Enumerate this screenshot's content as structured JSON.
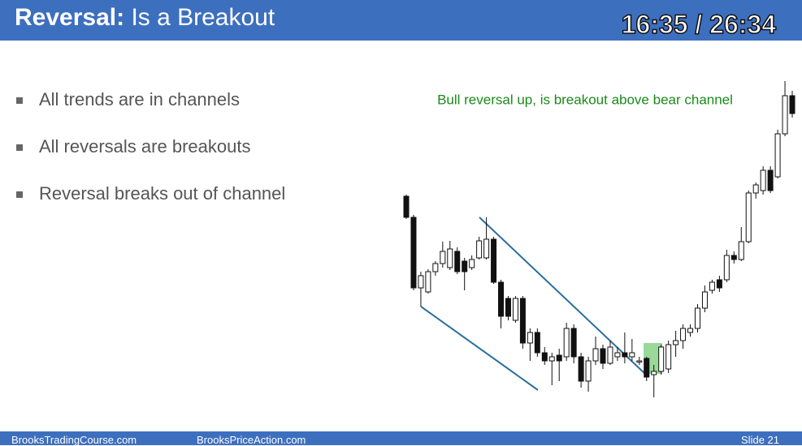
{
  "header": {
    "title_bold": "Reversal:",
    "title_rest": "Is a Breakout",
    "timer": "16:35 / 26:34"
  },
  "bullets": [
    "All trends are in channels",
    "All reversals are breakouts",
    "Reversal breaks out of channel"
  ],
  "chart_data": {
    "type": "candlestick",
    "annotation": "Bull reversal up, is breakout above bear channel",
    "ylim": [
      0,
      410
    ],
    "open": [
      258,
      232,
      145,
      140,
      165,
      175,
      170,
      190,
      178,
      170,
      182,
      182,
      205,
      152,
      132,
      105,
      132,
      77,
      90,
      65,
      55,
      62,
      60,
      95,
      60,
      30,
      55,
      70,
      52,
      60,
      65,
      60,
      55,
      58,
      38,
      42,
      45,
      75,
      80,
      90,
      95,
      120,
      142,
      155,
      155,
      185,
      180,
      202,
      262,
      265,
      290,
      282,
      335,
      382
    ],
    "close": [
      232,
      145,
      160,
      165,
      175,
      190,
      193,
      165,
      165,
      180,
      203,
      205,
      152,
      110,
      110,
      132,
      77,
      90,
      65,
      55,
      60,
      55,
      95,
      60,
      30,
      55,
      70,
      52,
      72,
      65,
      60,
      65,
      55,
      35,
      42,
      72,
      75,
      80,
      95,
      95,
      120,
      140,
      152,
      145,
      185,
      180,
      202,
      262,
      272,
      290,
      265,
      335,
      382,
      360
    ],
    "high": [
      260,
      235,
      165,
      168,
      178,
      202,
      203,
      195,
      182,
      185,
      208,
      232,
      208,
      155,
      135,
      135,
      135,
      95,
      95,
      72,
      65,
      70,
      102,
      100,
      65,
      60,
      85,
      75,
      80,
      72,
      90,
      82,
      60,
      60,
      50,
      75,
      80,
      92,
      100,
      100,
      125,
      148,
      155,
      160,
      192,
      190,
      220,
      265,
      275,
      295,
      295,
      340,
      400,
      388
    ],
    "low": [
      230,
      142,
      122,
      138,
      160,
      170,
      167,
      162,
      142,
      167,
      180,
      180,
      150,
      95,
      105,
      102,
      70,
      55,
      60,
      50,
      25,
      30,
      55,
      52,
      22,
      17,
      50,
      45,
      50,
      55,
      52,
      55,
      50,
      30,
      10,
      38,
      40,
      60,
      70,
      85,
      90,
      115,
      138,
      140,
      152,
      175,
      178,
      200,
      255,
      260,
      262,
      280,
      332,
      355
    ]
  },
  "footer": {
    "left": "BrooksTradingCourse.com",
    "middle": "BrooksPriceAction.com",
    "right": "Slide  21"
  }
}
